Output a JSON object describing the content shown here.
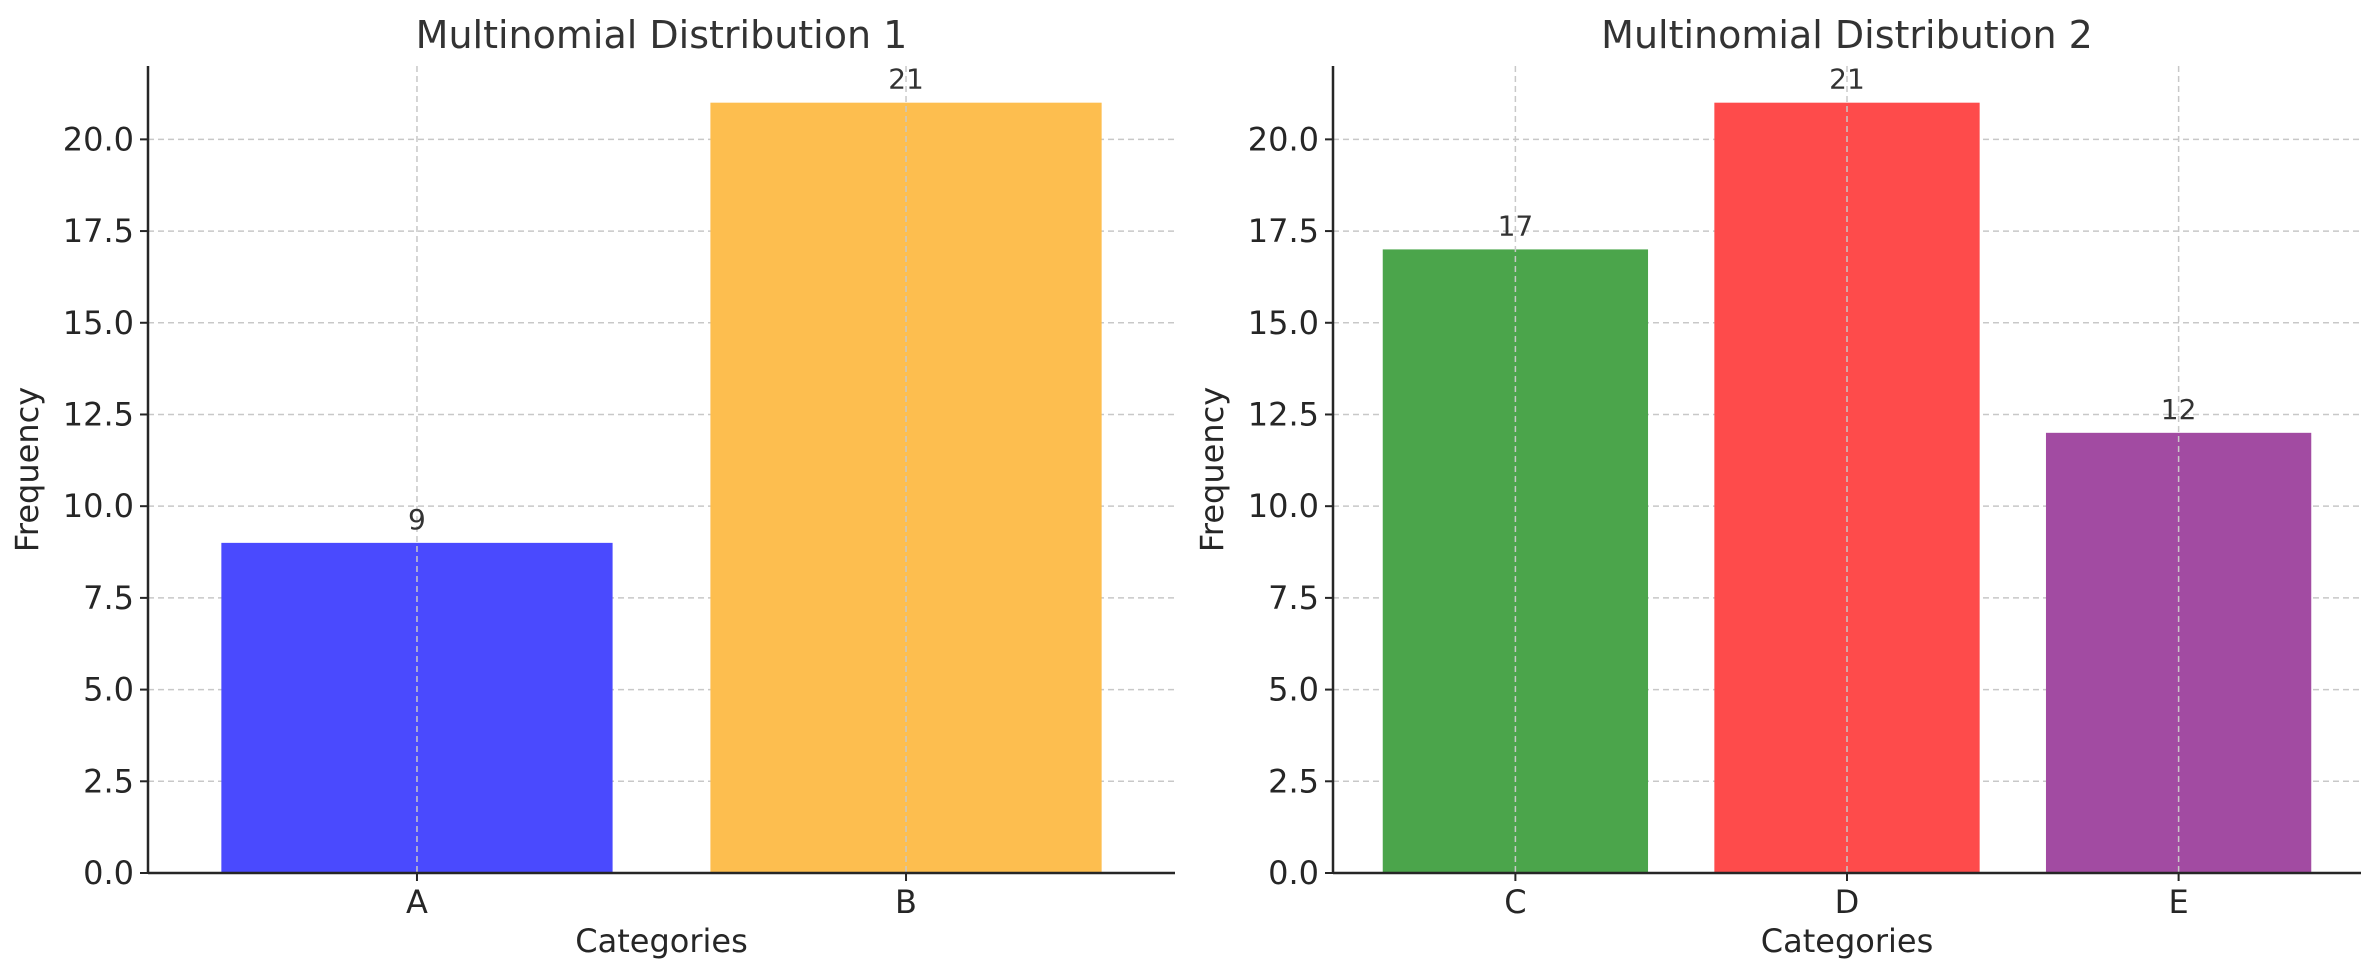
{
  "chart_data": [
    {
      "type": "bar",
      "title": "Multinomial Distribution 1",
      "xlabel": "Categories",
      "ylabel": "Frequency",
      "categories": [
        "A",
        "B"
      ],
      "values": [
        9,
        21
      ],
      "colors": [
        "#4a4afe",
        "#fdbe4f"
      ],
      "data_labels": [
        "9",
        "21"
      ],
      "ylim": [
        0,
        22
      ],
      "yticks": [
        0.0,
        2.5,
        5.0,
        7.5,
        10.0,
        12.5,
        15.0,
        17.5,
        20.0
      ],
      "ytick_labels": [
        "0.0",
        "2.5",
        "5.0",
        "7.5",
        "10.0",
        "12.5",
        "15.0",
        "17.5",
        "20.0"
      ],
      "grid": true,
      "grid_style": "dashed"
    },
    {
      "type": "bar",
      "title": "Multinomial Distribution 2",
      "xlabel": "Categories",
      "ylabel": "Frequency",
      "categories": [
        "C",
        "D",
        "E"
      ],
      "values": [
        17,
        21,
        12
      ],
      "colors": [
        "#4ba54b",
        "#fe4b4b",
        "#a24ba2"
      ],
      "data_labels": [
        "17",
        "21",
        "12"
      ],
      "ylim": [
        0,
        22
      ],
      "yticks": [
        0.0,
        2.5,
        5.0,
        7.5,
        10.0,
        12.5,
        15.0,
        17.5,
        20.0
      ],
      "ytick_labels": [
        "0.0",
        "2.5",
        "5.0",
        "7.5",
        "10.0",
        "12.5",
        "15.0",
        "17.5",
        "20.0"
      ],
      "grid": true,
      "grid_style": "dashed"
    }
  ],
  "style": {
    "axis_color": "#262626",
    "grid_color": "#c8c8c8",
    "text_color": "#333333"
  }
}
